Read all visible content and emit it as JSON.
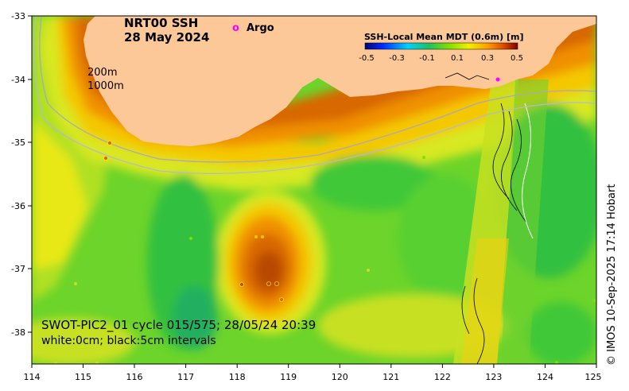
{
  "map": {
    "title_line1": "NRT00 SSH",
    "title_line2": "28 May 2024",
    "legend_argo_symbol": "o",
    "legend_argo_label": "Argo",
    "colorbar_title": "SSH-Local Mean MDT (0.6m) [m]",
    "colorbar_ticks": [
      "-0.5",
      "-0.3",
      "-0.1",
      "0.1",
      "0.3",
      "0.5"
    ],
    "contour_200": "200m",
    "contour_1000": "1000m",
    "swot_line1": "SWOT-PIC2_01 cycle 015/575; 28/05/24 20:39",
    "swot_line2": "white:0cm; black:5cm intervals",
    "credit": "© IMOS 10-Sep-2025 17:14 Hobart",
    "lon_ticks": [
      "114",
      "115",
      "116",
      "117",
      "118",
      "119",
      "120",
      "121",
      "122",
      "123",
      "124",
      "125"
    ],
    "lat_ticks": [
      "-33",
      "-34",
      "-35",
      "-36",
      "-37",
      "-38"
    ],
    "colors": {
      "land": "#fcc898",
      "ocean_base": "#7ad832",
      "high": "#b84a00",
      "argo": "#ff00ff"
    }
  }
}
